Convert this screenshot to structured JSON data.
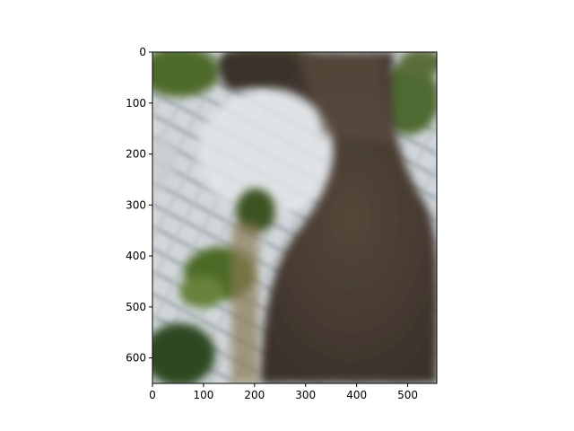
{
  "chart_data": {
    "type": "image",
    "title": "",
    "xlabel": "",
    "ylabel": "",
    "xlim": [
      0,
      557
    ],
    "ylim": [
      650,
      0
    ],
    "x_ticks": [
      0,
      100,
      200,
      300,
      400,
      500
    ],
    "y_ticks": [
      0,
      100,
      200,
      300,
      400,
      500,
      600
    ],
    "x_tick_labels": [
      "0",
      "100",
      "200",
      "300",
      "400",
      "500"
    ],
    "y_tick_labels": [
      "0",
      "100",
      "200",
      "300",
      "400",
      "500",
      "600"
    ],
    "grid": false,
    "description_of_image": "Blurry photo of a thick tree trunk on the right, green foliage on the left, chain-link fence and bright sky in the background"
  },
  "colors": {
    "trunk": "#4a3e33",
    "trunk_dark": "#3a302a",
    "foliage": "#5a7030",
    "foliage_dark": "#2e3f1c",
    "sky": "#d6dbe0",
    "fence": "#a9b1b5",
    "axis": "#000000"
  }
}
